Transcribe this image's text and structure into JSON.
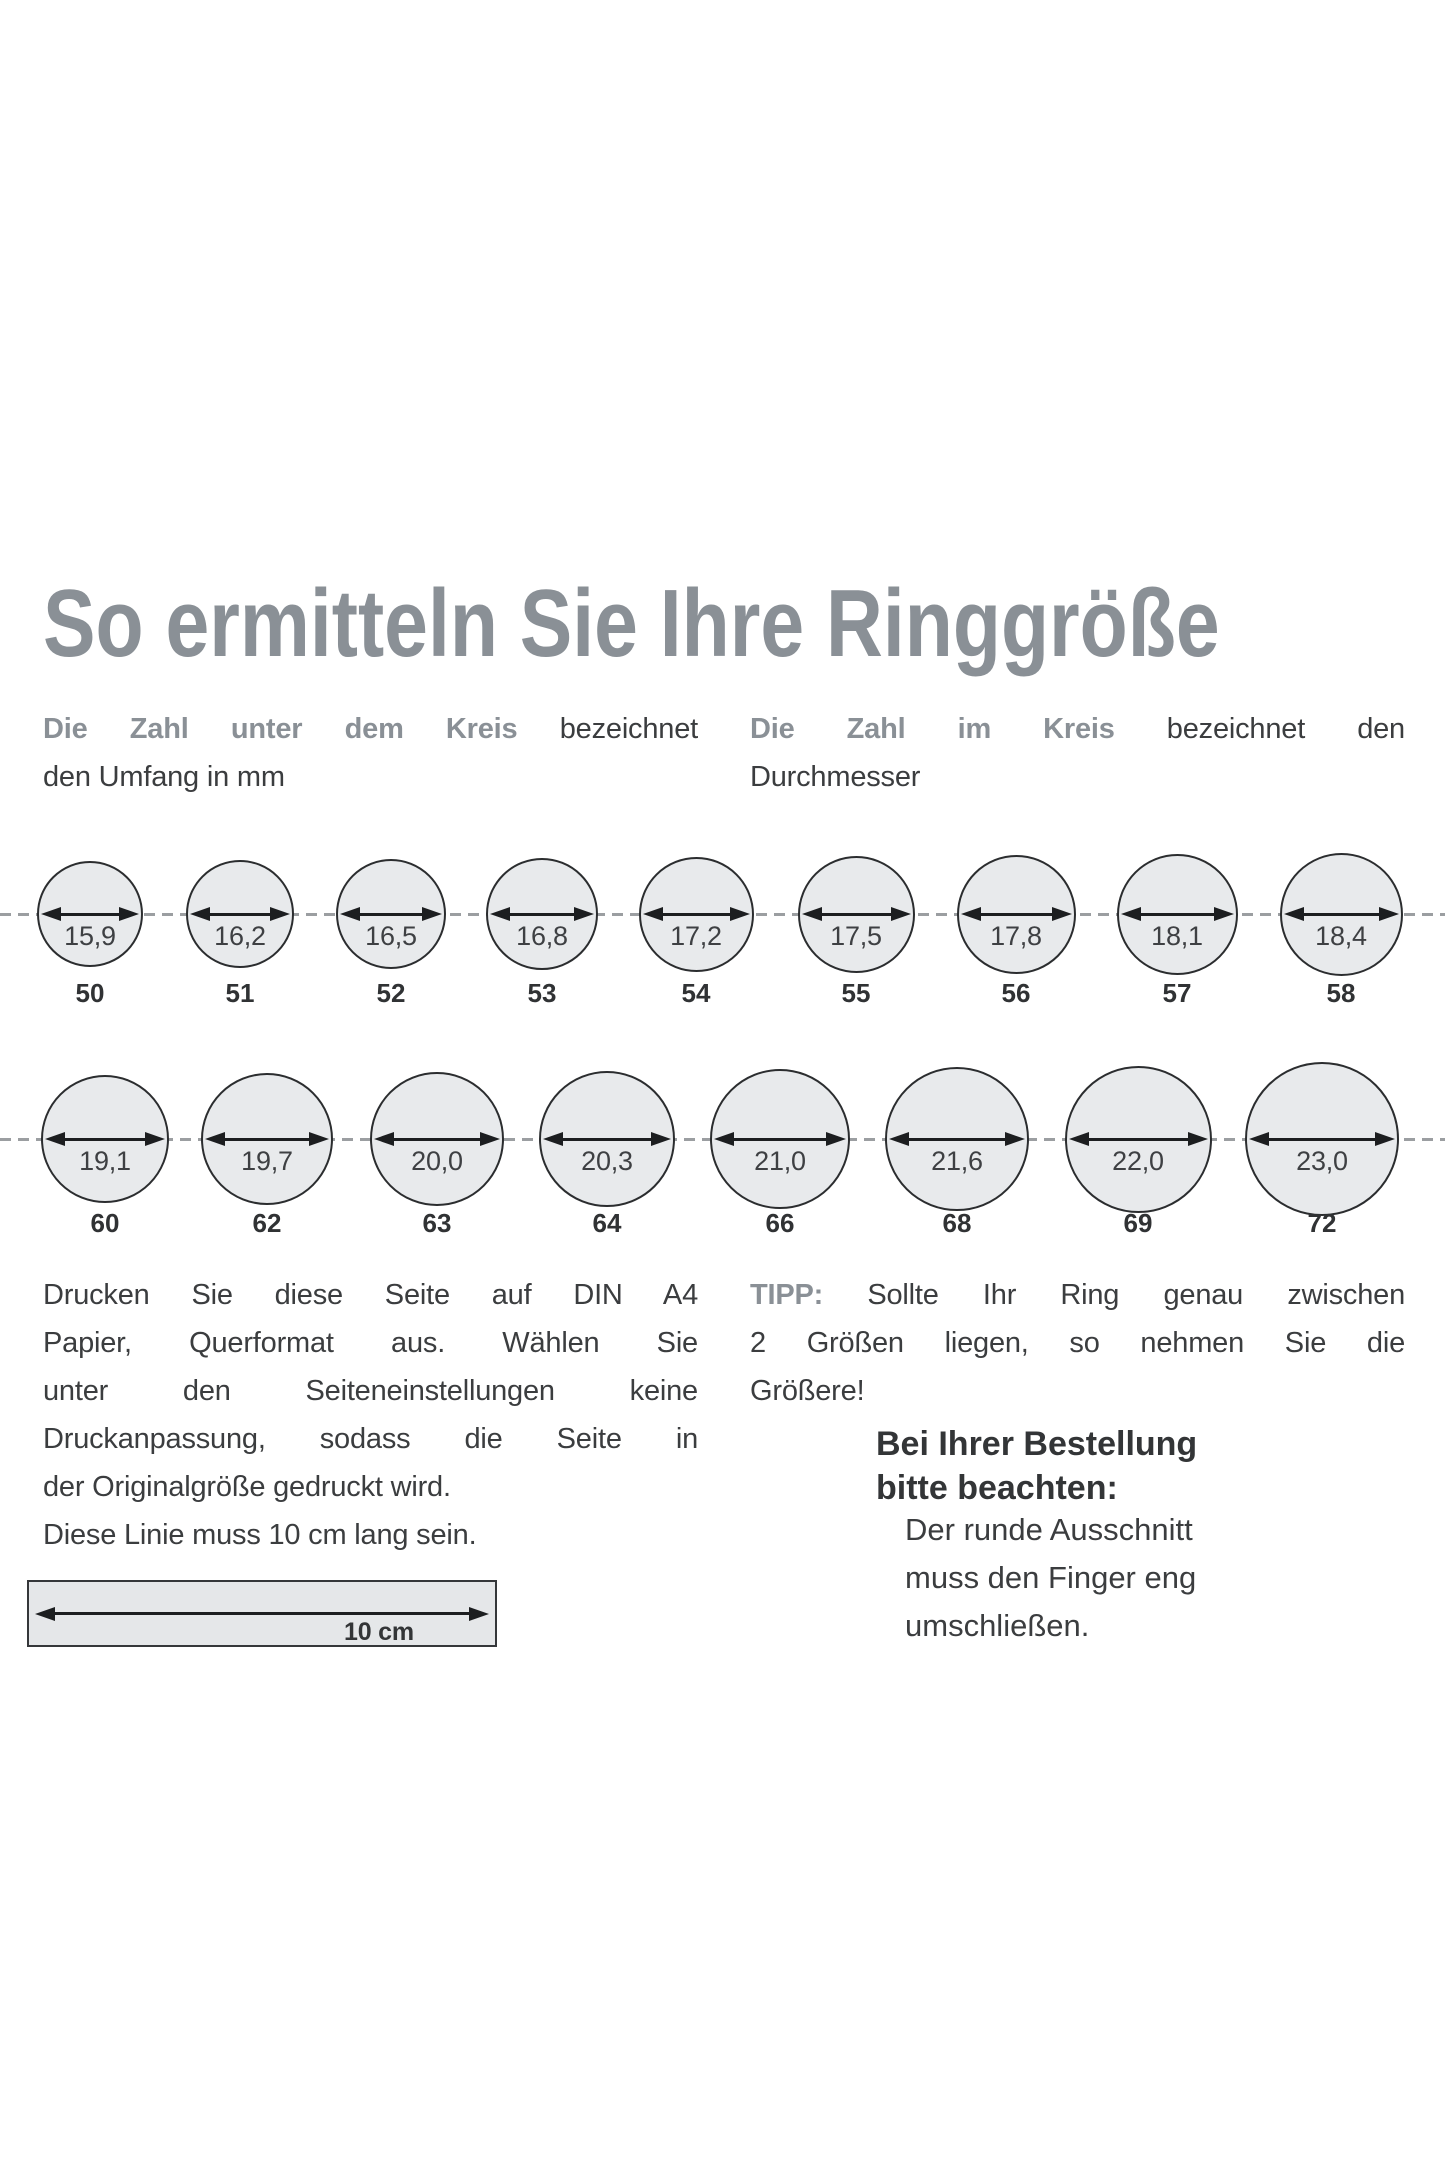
{
  "page": {
    "title": "So ermitteln Sie Ihre Ringgröße"
  },
  "intro": {
    "left": {
      "lines": [
        {
          "j": true,
          "segs": [
            {
              "t": "Die Zahl unter dem Kreis",
              "s": "lead"
            },
            {
              "t": " bezeichnet"
            }
          ]
        },
        {
          "j": false,
          "segs": [
            {
              "t": "den Umfang in mm"
            }
          ]
        }
      ]
    },
    "right": {
      "lines": [
        {
          "j": true,
          "segs": [
            {
              "t": "Die Zahl im Kreis",
              "s": "lead"
            },
            {
              "t": " bezeichnet den"
            }
          ]
        },
        {
          "j": false,
          "segs": [
            {
              "t": "Durchmesser"
            }
          ]
        }
      ]
    }
  },
  "size_chart": {
    "rows": [
      {
        "items": [
          {
            "diameter_mm": "15,9",
            "size": "50"
          },
          {
            "diameter_mm": "16,2",
            "size": "51"
          },
          {
            "diameter_mm": "16,5",
            "size": "52"
          },
          {
            "diameter_mm": "16,8",
            "size": "53"
          },
          {
            "diameter_mm": "17,2",
            "size": "54"
          },
          {
            "diameter_mm": "17,5",
            "size": "55"
          },
          {
            "diameter_mm": "17,8",
            "size": "56"
          },
          {
            "diameter_mm": "18,1",
            "size": "57"
          },
          {
            "diameter_mm": "18,4",
            "size": "58"
          }
        ]
      },
      {
        "items": [
          {
            "diameter_mm": "19,1",
            "size": "60"
          },
          {
            "diameter_mm": "19,7",
            "size": "62"
          },
          {
            "diameter_mm": "20,0",
            "size": "63"
          },
          {
            "diameter_mm": "20,3",
            "size": "64"
          },
          {
            "diameter_mm": "21,0",
            "size": "66"
          },
          {
            "diameter_mm": "21,6",
            "size": "68"
          },
          {
            "diameter_mm": "22,0",
            "size": "69"
          },
          {
            "diameter_mm": "23,0",
            "size": "72"
          }
        ]
      }
    ]
  },
  "print_note": {
    "lines": [
      {
        "j": true,
        "segs": [
          {
            "t": "Drucken Sie diese Seite auf DIN A4"
          }
        ]
      },
      {
        "j": true,
        "segs": [
          {
            "t": "Papier, Querformat aus. Wählen Sie"
          }
        ]
      },
      {
        "j": true,
        "segs": [
          {
            "t": "unter den Seiteneinstellungen keine"
          }
        ]
      },
      {
        "j": true,
        "segs": [
          {
            "t": "Druckanpassung, sodass die Seite in"
          }
        ]
      },
      {
        "j": false,
        "segs": [
          {
            "t": "der Originalgröße gedruckt wird."
          }
        ]
      },
      {
        "j": false,
        "segs": [
          {
            "t": "Diese Linie muss 10 cm lang sein."
          }
        ]
      }
    ],
    "ruler_label": "10 cm"
  },
  "tip": {
    "lines": [
      {
        "j": true,
        "segs": [
          {
            "t": "TIPP:",
            "s": "lead"
          },
          {
            "t": " Sollte Ihr Ring genau zwischen"
          }
        ]
      },
      {
        "j": true,
        "segs": [
          {
            "t": "2 Größen liegen, so nehmen Sie die"
          }
        ]
      },
      {
        "j": false,
        "segs": [
          {
            "t": "Größere!"
          }
        ]
      }
    ]
  },
  "order_note": {
    "heading_lines": [
      {
        "j": false,
        "segs": [
          {
            "t": "Bei Ihrer Bestellung"
          }
        ]
      },
      {
        "j": false,
        "segs": [
          {
            "t": "bitte beachten:"
          }
        ]
      }
    ],
    "body_lines": [
      {
        "j": false,
        "segs": [
          {
            "t": "Der runde Ausschnitt"
          }
        ]
      },
      {
        "j": false,
        "segs": [
          {
            "t": "muss den Finger eng"
          }
        ]
      },
      {
        "j": false,
        "segs": [
          {
            "t": "umschließen."
          }
        ]
      }
    ]
  },
  "colors": {
    "accent": "#8A9096",
    "ink": "#3B3D3F",
    "fill": "#E8EAEC",
    "stroke": "#2B2D2F",
    "arrow": "#1C1E20",
    "dash": "#9B9EA1",
    "rfill": "#E5E7E9"
  }
}
